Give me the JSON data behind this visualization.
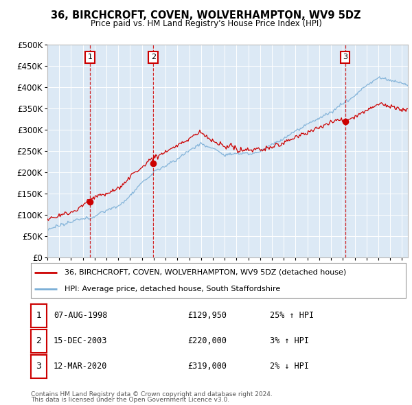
{
  "title": "36, BIRCHCROFT, COVEN, WOLVERHAMPTON, WV9 5DZ",
  "subtitle": "Price paid vs. HM Land Registry's House Price Index (HPI)",
  "ylim": [
    0,
    500000
  ],
  "yticks": [
    0,
    50000,
    100000,
    150000,
    200000,
    250000,
    300000,
    350000,
    400000,
    450000,
    500000
  ],
  "ytick_labels": [
    "£0",
    "£50K",
    "£100K",
    "£150K",
    "£200K",
    "£250K",
    "£300K",
    "£350K",
    "£400K",
    "£450K",
    "£500K"
  ],
  "sales": [
    {
      "date_num": 1998.6,
      "price": 129950,
      "label": "1",
      "date_str": "07-AUG-1998",
      "pct": "25%",
      "dir": "↑"
    },
    {
      "date_num": 2003.96,
      "price": 220000,
      "label": "2",
      "date_str": "15-DEC-2003",
      "pct": "3%",
      "dir": "↑"
    },
    {
      "date_num": 2020.19,
      "price": 319000,
      "label": "3",
      "date_str": "12-MAR-2020",
      "pct": "2%",
      "dir": "↓"
    }
  ],
  "line1_color": "#cc0000",
  "line2_color": "#7aaed6",
  "legend_line1": "36, BIRCHCROFT, COVEN, WOLVERHAMPTON, WV9 5DZ (detached house)",
  "legend_line2": "HPI: Average price, detached house, South Staffordshire",
  "footer1": "Contains HM Land Registry data © Crown copyright and database right 2024.",
  "footer2": "This data is licensed under the Open Government Licence v3.0.",
  "table": [
    {
      "num": "1",
      "date": "07-AUG-1998",
      "price": "£129,950",
      "pct": "25% ↑ HPI"
    },
    {
      "num": "2",
      "date": "15-DEC-2003",
      "price": "£220,000",
      "pct": "3% ↑ HPI"
    },
    {
      "num": "3",
      "date": "12-MAR-2020",
      "price": "£319,000",
      "pct": "2% ↓ HPI"
    }
  ],
  "background_color": "#ffffff",
  "plot_bg_color": "#dce9f5",
  "xstart": 1995,
  "xend": 2025.5
}
